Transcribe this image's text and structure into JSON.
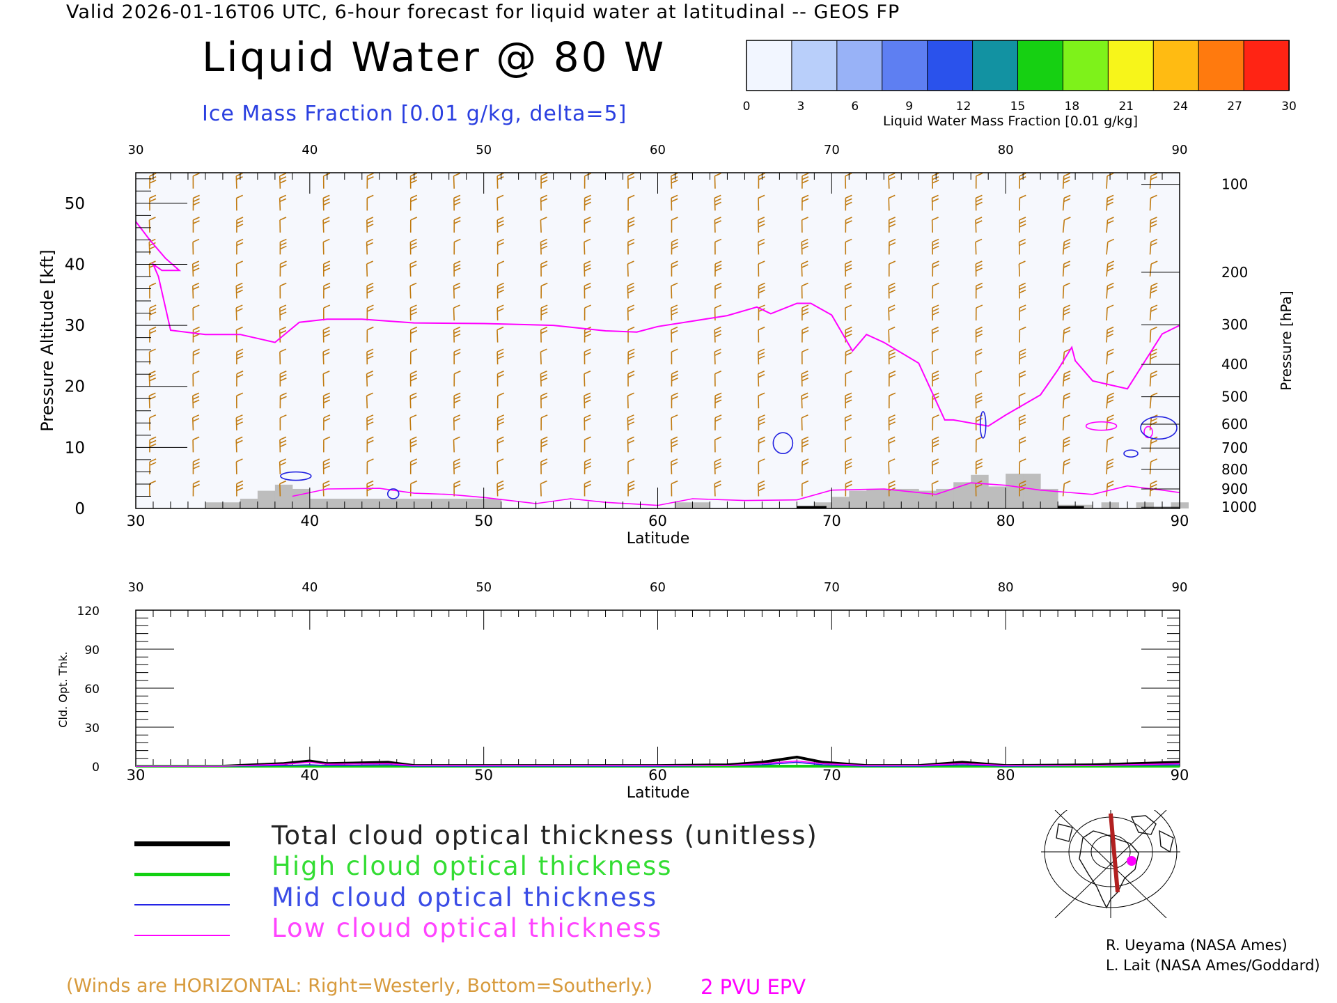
{
  "header": {
    "title_line": "Valid 2026-01-16T06 UTC, 6-hour forecast for liquid water at latitudinal -- GEOS FP",
    "main_title": "Liquid Water @ 80 W",
    "ice_label": "Ice Mass Fraction [0.01 g/kg, delta=5]"
  },
  "colorbar": {
    "label": "Liquid Water Mass Fraction [0.01 g/kg]",
    "ticks": [
      "0",
      "3",
      "6",
      "9",
      "12",
      "15",
      "18",
      "21",
      "24",
      "27",
      "30"
    ],
    "colors": [
      "#f2f6ff",
      "#b9cffa",
      "#98b2f7",
      "#5e7ff2",
      "#2a52ec",
      "#1292a2",
      "#16d012",
      "#7ef21a",
      "#f7f51a",
      "#ffbb12",
      "#ff7a0e",
      "#ff2414"
    ]
  },
  "colors": {
    "wind_barbs": "#c07a10",
    "epv": "#ff00ff",
    "ice_contour": "#2020e0",
    "terrain": "#bdbdbd"
  },
  "chart_data": [
    {
      "type": "area",
      "xlabel": "Latitude",
      "ylabel": "Pressure Altitude [kft]",
      "ylabel_right": "Pressure [hPa]",
      "xlim": [
        30,
        90
      ],
      "ylim": [
        0,
        55
      ],
      "x_ticks": [
        "30",
        "40",
        "50",
        "60",
        "70",
        "80",
        "90"
      ],
      "y_ticks": [
        "0",
        "10",
        "20",
        "30",
        "40",
        "50"
      ],
      "pressure_levels": [
        {
          "label": "100",
          "kft": 53.1
        },
        {
          "label": "200",
          "kft": 38.7
        },
        {
          "label": "300",
          "kft": 30.1
        },
        {
          "label": "400",
          "kft": 23.6
        },
        {
          "label": "500",
          "kft": 18.3
        },
        {
          "label": "600",
          "kft": 13.8
        },
        {
          "label": "700",
          "kft": 9.9
        },
        {
          "label": "800",
          "kft": 6.4
        },
        {
          "label": "900",
          "kft": 3.2
        },
        {
          "label": "1000",
          "kft": 0.2
        }
      ],
      "series": [
        {
          "name": "2 PVU EPV",
          "x": [
            30,
            30.8,
            31.7,
            32.5,
            31.5,
            31.0,
            31.3,
            32.0,
            34,
            36,
            38,
            39.4,
            41,
            43,
            46,
            50,
            54,
            57,
            58.8,
            60,
            62,
            64,
            65.7,
            66.5,
            68,
            68.8,
            70,
            71.2,
            72,
            73,
            75,
            76.5,
            77,
            79,
            80,
            82,
            83,
            83.8,
            84,
            85,
            87,
            89,
            90
          ],
          "y": [
            47,
            44,
            41,
            39,
            39,
            40,
            38,
            29.2,
            28.5,
            28.5,
            27.2,
            30.5,
            31,
            31,
            30.4,
            30.3,
            30,
            29.1,
            28.9,
            29.8,
            30.7,
            31.6,
            33,
            31.9,
            33.6,
            33.6,
            31.7,
            25.8,
            28.5,
            27.2,
            23.8,
            14.5,
            14.5,
            13.5,
            15.3,
            18.6,
            22.7,
            26.4,
            24.2,
            20.9,
            19.6,
            28.6,
            30
          ]
        },
        {
          "name": "Terrain",
          "x": [
            34.5,
            35.5,
            36.5,
            37.5,
            38.5,
            39.5,
            40.5,
            41.5,
            42.5,
            43.5,
            44.5,
            45.5,
            46.5,
            47.5,
            48.5,
            49.5,
            50.5,
            61.5,
            62.5,
            69.5,
            70.5,
            71.5,
            72.5,
            73.5,
            74.5,
            75.5,
            76.5,
            77.5,
            78.5,
            79.5,
            80.5,
            81.5,
            82.5,
            83.5,
            84.5,
            86,
            88,
            90
          ],
          "y": [
            1.0,
            1.0,
            1.6,
            2.9,
            3.9,
            3.2,
            1.6,
            1.6,
            1.6,
            1.6,
            1.6,
            1.6,
            1.6,
            1.6,
            1.6,
            1.6,
            1.6,
            1.0,
            1.0,
            1.0,
            1.9,
            2.9,
            3.2,
            3.2,
            3.2,
            2.9,
            3.2,
            4.3,
            5.5,
            3.6,
            5.7,
            5.7,
            3.2,
            0.6,
            0.6,
            1.0,
            1.0,
            1.0
          ]
        }
      ],
      "note": "Winds are HORIZONTAL: Right=Westerly, Bottom=Southerly."
    },
    {
      "type": "line",
      "xlabel": "Latitude",
      "ylabel": "Cld. Opt. Thk.",
      "xlim": [
        30,
        90
      ],
      "ylim": [
        0,
        120
      ],
      "x_ticks": [
        "30",
        "40",
        "50",
        "60",
        "70",
        "80",
        "90"
      ],
      "y_ticks": [
        "0",
        "30",
        "60",
        "90",
        "120"
      ],
      "x": [
        30,
        35,
        38.5,
        40,
        41,
        44.5,
        46,
        50,
        55,
        60,
        64,
        66,
        68,
        69.5,
        72,
        75,
        77.5,
        80,
        85,
        90
      ],
      "series": [
        {
          "name": "Total cloud optical thickness (unitless)",
          "values": [
            0,
            0,
            2,
            4,
            2,
            3,
            0.5,
            0.5,
            0.5,
            0.5,
            1,
            3,
            7,
            3,
            0.5,
            0.5,
            3,
            0.5,
            1,
            3
          ]
        },
        {
          "name": "High cloud optical thickness",
          "values": [
            0,
            0,
            0,
            0,
            0,
            0,
            0,
            0,
            0,
            0,
            0,
            0,
            0,
            0,
            0,
            0,
            0,
            0,
            0,
            0
          ]
        },
        {
          "name": "Mid cloud optical thickness",
          "values": [
            0,
            0,
            0.5,
            1,
            0.5,
            1,
            0,
            0,
            0,
            0,
            0.5,
            1,
            3,
            1,
            0,
            0,
            1,
            0,
            0.5,
            1
          ]
        },
        {
          "name": "Low cloud optical thickness",
          "values": [
            0,
            0,
            1.5,
            3,
            1.5,
            2,
            0.5,
            0.5,
            0.5,
            0.5,
            0.5,
            2,
            4,
            2,
            0.5,
            0.5,
            2,
            0.5,
            0.5,
            2
          ]
        }
      ]
    }
  ],
  "legend": {
    "items": [
      {
        "label": "Total cloud optical thickness (unitless)",
        "color": "#000000"
      },
      {
        "label": "High cloud optical thickness",
        "color": "#12d012"
      },
      {
        "label": "Mid cloud optical thickness",
        "color": "#2424e6"
      },
      {
        "label": "Low cloud optical thickness",
        "color": "#ff00ff"
      }
    ]
  },
  "footer": {
    "winds_note": "(Winds are HORIZONTAL: Right=Westerly, Bottom=Southerly.)",
    "pvu_label": "2 PVU EPV",
    "credit_1": "R. Ueyama (NASA Ames)",
    "credit_2": "L. Lait (NASA Ames/Goddard)"
  },
  "minimap": {
    "icon": "globe-map-icon"
  }
}
